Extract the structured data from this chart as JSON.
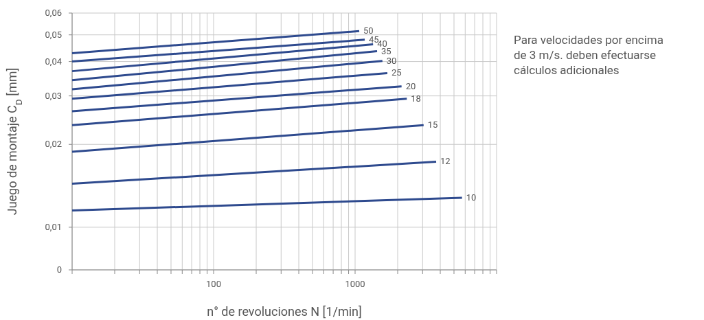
{
  "chart_data": {
    "type": "line",
    "xlabel": "n° de revoluciones N [1/min]",
    "ylabel": "Juego de montaje C$_{D}$ [mm]",
    "log": "xy",
    "grid": true,
    "marker": "none",
    "line_style": "solid",
    "xlim": [
      10,
      10000
    ],
    "xticks": [
      {
        "value": 10,
        "label": null
      },
      {
        "value": 20,
        "label": null
      },
      {
        "value": 30,
        "label": null
      },
      {
        "value": 40,
        "label": null
      },
      {
        "value": 50,
        "label": null
      },
      {
        "value": 60,
        "label": null
      },
      {
        "value": 70,
        "label": null
      },
      {
        "value": 80,
        "label": null
      },
      {
        "value": 90,
        "label": null
      },
      100,
      {
        "value": 200,
        "label": null
      },
      {
        "value": 300,
        "label": null
      },
      {
        "value": 400,
        "label": null
      },
      {
        "value": 500,
        "label": null
      },
      {
        "value": 600,
        "label": null
      },
      {
        "value": 700,
        "label": null
      },
      {
        "value": 800,
        "label": null
      },
      {
        "value": 900,
        "label": null
      },
      1000,
      {
        "value": 2000,
        "label": null
      },
      {
        "value": 3000,
        "label": null
      },
      {
        "value": 4000,
        "label": null
      },
      {
        "value": 5000,
        "label": null
      },
      {
        "value": 6000,
        "label": null
      },
      {
        "value": 7000,
        "label": null
      },
      {
        "value": 8000,
        "label": null
      },
      {
        "value": 9000,
        "label": null
      },
      {
        "value": 10000,
        "label": null
      }
    ],
    "ylim": [
      0.007,
      0.06
    ],
    "yticks": [
      {
        "value": 0.007,
        "label": "0"
      },
      {
        "value": 0.01,
        "label": "0,01"
      },
      {
        "value": 0.02,
        "label": "0,02"
      },
      {
        "value": 0.03,
        "label": "0,03"
      },
      {
        "value": 0.04,
        "label": "0,04"
      },
      {
        "value": 0.05,
        "label": "0,05"
      },
      {
        "value": 0.06,
        "label": "0,06"
      }
    ],
    "series": [
      {
        "name": "50",
        "color": "#2e4a8e",
        "x": [
          10,
          1070
        ],
        "values": [
          0.0429,
          0.0516
        ]
      },
      {
        "name": "45",
        "color": "#2e4a8e",
        "x": [
          10,
          1170
        ],
        "values": [
          0.04,
          0.048
        ]
      },
      {
        "name": "40",
        "color": "#2e4a8e",
        "x": [
          10,
          1340
        ],
        "values": [
          0.0369,
          0.0462
        ]
      },
      {
        "name": "35",
        "color": "#2e4a8e",
        "x": [
          10,
          1430
        ],
        "values": [
          0.0342,
          0.0436
        ]
      },
      {
        "name": "30",
        "color": "#2e4a8e",
        "x": [
          10,
          1560
        ],
        "values": [
          0.0317,
          0.0402
        ]
      },
      {
        "name": "25",
        "color": "#2e4a8e",
        "x": [
          10,
          1690
        ],
        "values": [
          0.0293,
          0.0363
        ]
      },
      {
        "name": "20",
        "color": "#2e4a8e",
        "x": [
          10,
          2130
        ],
        "values": [
          0.0264,
          0.0325
        ]
      },
      {
        "name": "18",
        "color": "#2e4a8e",
        "x": [
          10,
          2320
        ],
        "values": [
          0.0235,
          0.0293
        ]
      },
      {
        "name": "15",
        "color": "#2e4a8e",
        "x": [
          10,
          3050
        ],
        "values": [
          0.0188,
          0.0235
        ]
      },
      {
        "name": "12",
        "color": "#2e4a8e",
        "x": [
          10,
          3740
        ],
        "values": [
          0.0144,
          0.0173
        ]
      },
      {
        "name": "10",
        "color": "#2e4a8e",
        "x": [
          10,
          5700
        ],
        "values": [
          0.0115,
          0.0128
        ]
      }
    ],
    "annotations": [
      "Para velocidades por encima de 3 m/s. deben efectuarse cálculos adicionales"
    ]
  }
}
